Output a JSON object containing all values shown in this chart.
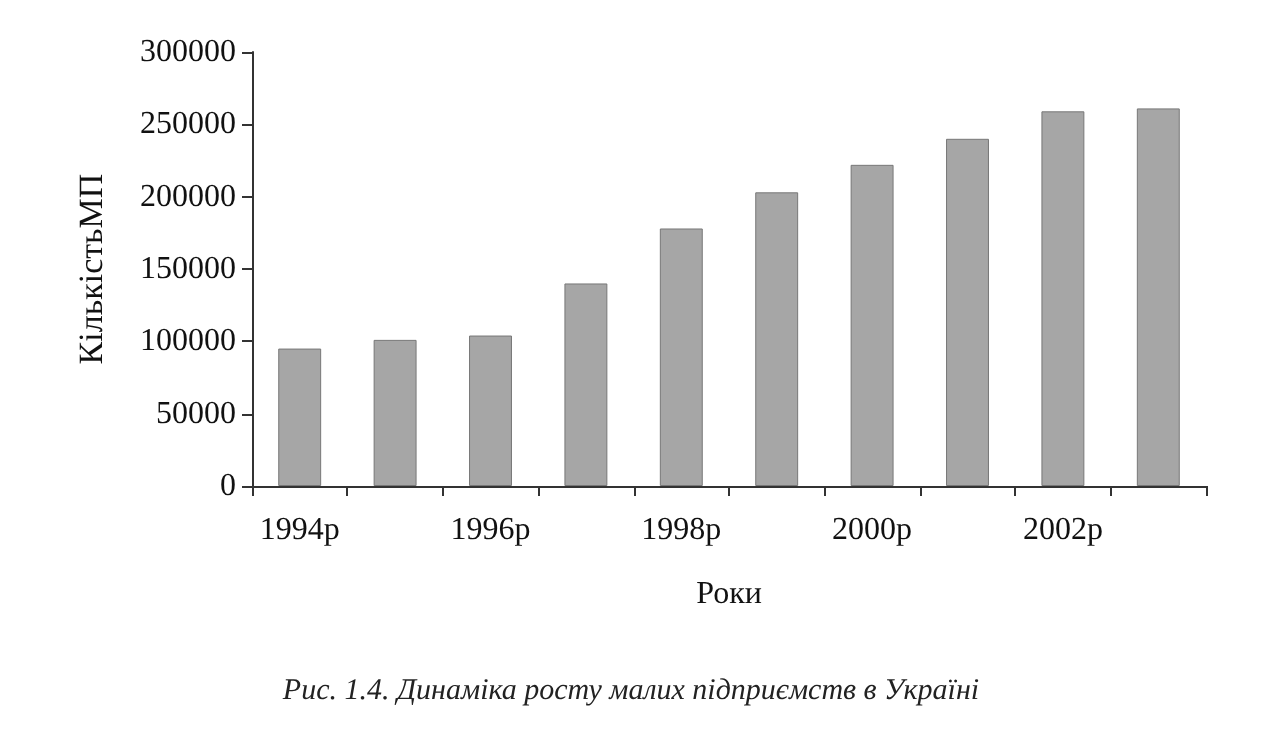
{
  "chart_data": {
    "type": "bar",
    "xlabel": "Роки",
    "ylabel": "КількістьМП",
    "categories": [
      "1994р",
      null,
      "1996р",
      null,
      "1998р",
      null,
      "2000р",
      null,
      "2002р",
      null
    ],
    "values": [
      95000,
      101000,
      104000,
      140000,
      178000,
      203000,
      222000,
      240000,
      259000,
      261000
    ],
    "color": "#a6a6a6",
    "ylim": [
      0,
      300000
    ],
    "yticks": [
      0,
      50000,
      100000,
      150000,
      200000,
      250000,
      300000
    ],
    "grid": false,
    "annotations": [
      "Рис. 1.4. Динаміка росту малих підприємств в Україні"
    ]
  }
}
